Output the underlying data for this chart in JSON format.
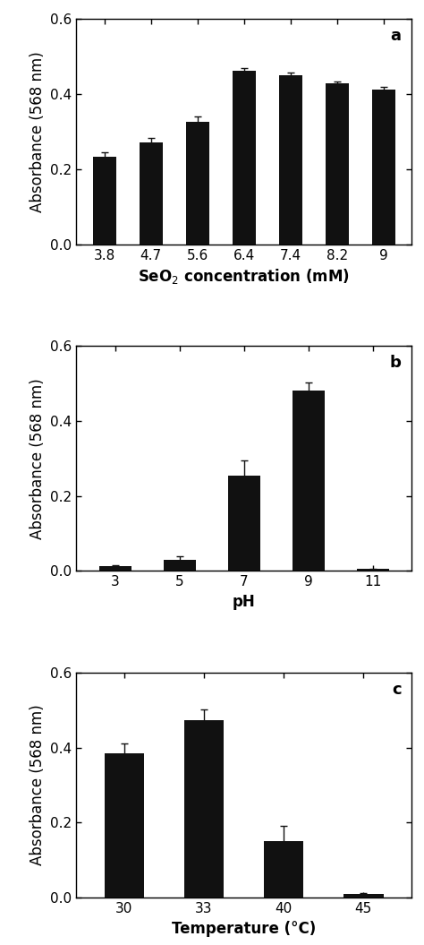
{
  "panel_a": {
    "categories": [
      "3.8",
      "4.7",
      "5.6",
      "6.4",
      "7.4",
      "8.2",
      "9"
    ],
    "values": [
      0.232,
      0.272,
      0.325,
      0.462,
      0.45,
      0.428,
      0.413
    ],
    "errors": [
      0.012,
      0.01,
      0.015,
      0.008,
      0.006,
      0.005,
      0.007
    ],
    "xlabel": "SeO$_2$ concentration (mM)",
    "ylabel": "Absorbance (568 nm)",
    "ylim": [
      0,
      0.6
    ],
    "yticks": [
      0.0,
      0.2,
      0.4,
      0.6
    ],
    "label": "a"
  },
  "panel_b": {
    "categories": [
      "3",
      "5",
      "7",
      "9",
      "11"
    ],
    "values": [
      0.012,
      0.03,
      0.255,
      0.48,
      0.005
    ],
    "errors": [
      0.004,
      0.01,
      0.04,
      0.022,
      0.001
    ],
    "xlabel": "pH",
    "ylabel": "Absorbance (568 nm)",
    "ylim": [
      0,
      0.6
    ],
    "yticks": [
      0.0,
      0.2,
      0.4,
      0.6
    ],
    "label": "b"
  },
  "panel_c": {
    "categories": [
      "30",
      "33",
      "40",
      "45"
    ],
    "values": [
      0.385,
      0.472,
      0.152,
      0.01
    ],
    "errors": [
      0.025,
      0.03,
      0.04,
      0.003
    ],
    "xlabel": "Temperature (°C)",
    "ylabel": "Absorbance (568 nm)",
    "ylim": [
      0,
      0.6
    ],
    "yticks": [
      0.0,
      0.2,
      0.4,
      0.6
    ],
    "label": "c"
  },
  "bar_color": "#111111",
  "bar_width": 0.5,
  "capsize": 3,
  "ecolor": "#111111",
  "elinewidth": 1.0,
  "tick_fontsize": 11,
  "label_fontsize": 12,
  "panel_label_fontsize": 13,
  "fig_width": 4.74,
  "fig_height": 10.55
}
